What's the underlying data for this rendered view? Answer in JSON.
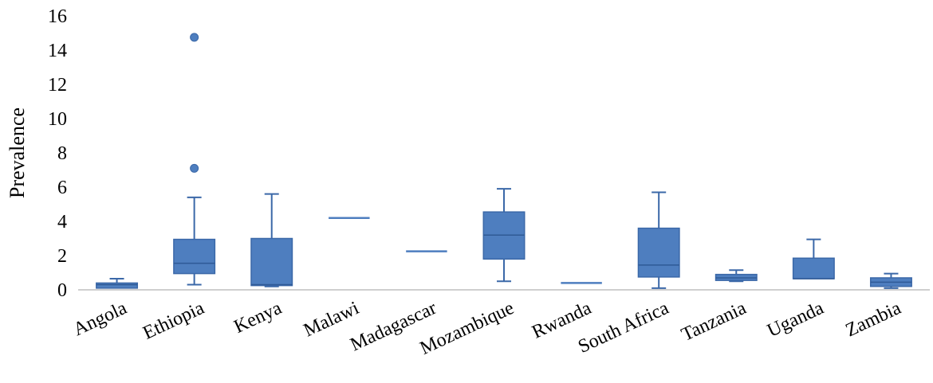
{
  "chart_data": {
    "type": "box",
    "title": "",
    "xlabel": "",
    "ylabel": "Prevalence",
    "ylim": [
      0,
      16
    ],
    "yticks": [
      "0",
      "2",
      "4",
      "6",
      "8",
      "10",
      "12",
      "14",
      "16"
    ],
    "grid": false,
    "legend": "none",
    "colors": {
      "box_fill": "#4e7ebf",
      "box_edge": "#3b68a8",
      "axis": "#bfbfbf"
    },
    "categories": [
      "Angola",
      "Ethiopia",
      "Kenya",
      "Malawi",
      "Madagascar",
      "Mozambique",
      "Rwanda",
      "South Africa",
      "Tanzania",
      "Uganda",
      "Zambia"
    ],
    "boxes": [
      {
        "min": 0.1,
        "q1": 0.1,
        "median": 0.3,
        "q3": 0.4,
        "max": 0.65,
        "outliers": []
      },
      {
        "min": 0.3,
        "q1": 0.95,
        "median": 1.55,
        "q3": 2.95,
        "max": 5.4,
        "outliers": [
          7.1,
          14.75
        ]
      },
      {
        "min": 0.2,
        "q1": 0.25,
        "median": 0.3,
        "q3": 3.0,
        "max": 5.6,
        "outliers": []
      },
      {
        "min": 4.2,
        "q1": 4.2,
        "median": 4.2,
        "q3": 4.2,
        "max": 4.2,
        "outliers": []
      },
      {
        "min": 2.25,
        "q1": 2.25,
        "median": 2.25,
        "q3": 2.25,
        "max": 2.25,
        "outliers": []
      },
      {
        "min": 0.5,
        "q1": 1.8,
        "median": 3.2,
        "q3": 4.55,
        "max": 5.9,
        "outliers": []
      },
      {
        "min": 0.4,
        "q1": 0.4,
        "median": 0.4,
        "q3": 0.4,
        "max": 0.4,
        "outliers": []
      },
      {
        "min": 0.1,
        "q1": 0.75,
        "median": 1.45,
        "q3": 3.6,
        "max": 5.7,
        "outliers": []
      },
      {
        "min": 0.5,
        "q1": 0.55,
        "median": 0.7,
        "q3": 0.9,
        "max": 1.15,
        "outliers": []
      },
      {
        "min": 0.65,
        "q1": 0.65,
        "median": 0.65,
        "q3": 1.85,
        "max": 2.95,
        "outliers": []
      },
      {
        "min": 0.1,
        "q1": 0.2,
        "median": 0.45,
        "q3": 0.7,
        "max": 0.95,
        "outliers": []
      }
    ]
  }
}
